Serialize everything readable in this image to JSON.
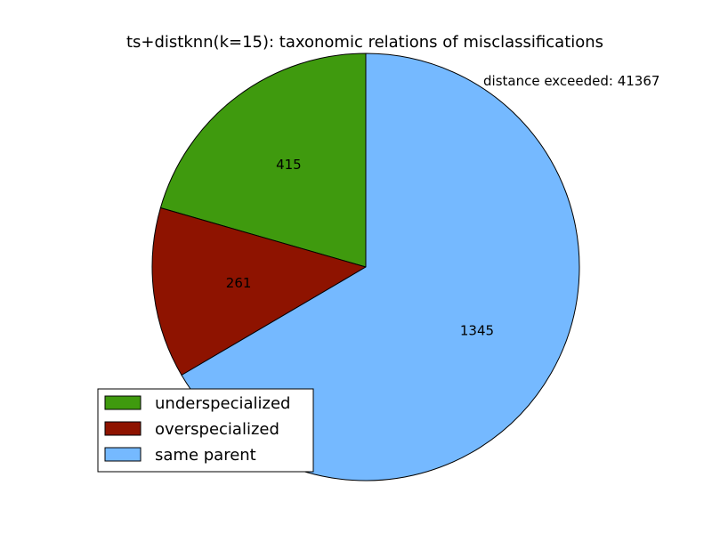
{
  "chart_data": {
    "type": "pie",
    "title": "ts+distknn(k=15): taxonomic relations of misclassifications",
    "annotation": "distance exceeded: 41367",
    "categories": [
      "underspecialized",
      "overspecialized",
      "same parent"
    ],
    "values": [
      415,
      261,
      1345
    ],
    "labels": [
      "415",
      "261",
      "1345"
    ],
    "colors": [
      "#3f9a0e",
      "#8e1300",
      "#75b9ff"
    ],
    "start_angle_deg": 90,
    "direction": "counterclockwise",
    "legend": {
      "position": "lower-left",
      "entries": [
        "underspecialized",
        "overspecialized",
        "same parent"
      ]
    }
  }
}
